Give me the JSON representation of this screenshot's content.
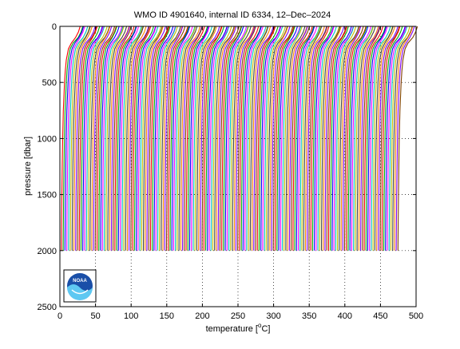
{
  "chart_data": {
    "type": "line",
    "title": "WMO ID 4901640, internal ID 6334, 12–Dec–2024",
    "xlabel_main": "temperature [",
    "xlabel_sup": "o",
    "xlabel_end": "C]",
    "ylabel": "pressure [dbar]",
    "xlim": [
      0,
      500
    ],
    "ylim": [
      0,
      2500
    ],
    "y_reversed": true,
    "xticks": [
      0,
      50,
      100,
      150,
      200,
      250,
      300,
      350,
      400,
      450,
      500
    ],
    "yticks": [
      0,
      500,
      1000,
      1500,
      2000,
      2500
    ],
    "grid": true,
    "profile_count": 190,
    "profile_offset_step": 2.5,
    "profile_shape": {
      "pressure": [
        0,
        20,
        50,
        100,
        150,
        200,
        300,
        400,
        500,
        750,
        1000,
        1250,
        1500,
        1750,
        2000
      ],
      "temperature": [
        28.5,
        27.5,
        26.0,
        22.0,
        16.0,
        12.0,
        9.0,
        7.5,
        6.5,
        4.8,
        3.9,
        3.3,
        2.8,
        2.4,
        2.1
      ]
    },
    "series_colors": [
      "#ff0000",
      "#00aa00",
      "#0000ff",
      "#ff00ff",
      "#00bfbf",
      "#bfbf00",
      "#404040",
      "#ff8000",
      "#8000ff",
      "#804000"
    ]
  },
  "logo": {
    "text": "NOAA"
  }
}
